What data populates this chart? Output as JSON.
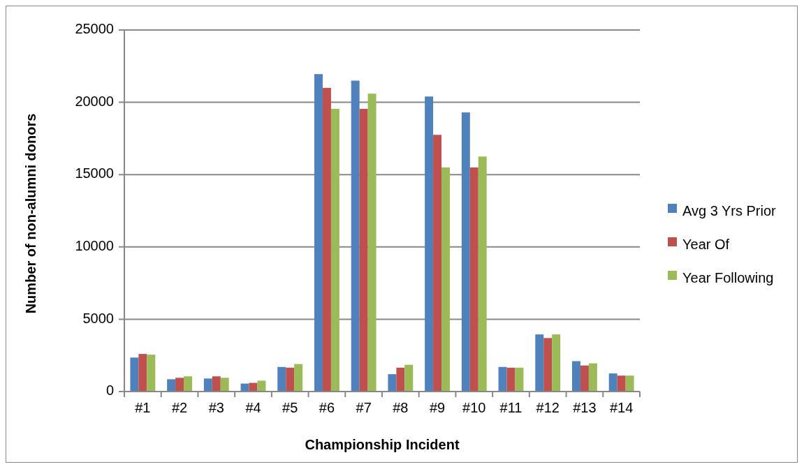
{
  "chart_data": {
    "type": "bar",
    "xlabel": "Championship Incident",
    "ylabel": "Number of non-alumni donors",
    "categories": [
      "#1",
      "#2",
      "#3",
      "#4",
      "#5",
      "#6",
      "#7",
      "#8",
      "#9",
      "#10",
      "#11",
      "#12",
      "#13",
      "#14"
    ],
    "series": [
      {
        "name": "Avg 3 Yrs Prior",
        "color": "#4f81bd",
        "values": [
          2350,
          850,
          900,
          550,
          1700,
          21950,
          21500,
          1200,
          20400,
          19300,
          1700,
          3950,
          2100,
          1250
        ]
      },
      {
        "name": "Year Of",
        "color": "#c0504d",
        "values": [
          2600,
          950,
          1050,
          600,
          1650,
          21000,
          19550,
          1650,
          17750,
          15500,
          1650,
          3700,
          1800,
          1100
        ]
      },
      {
        "name": "Year Following",
        "color": "#9bbb59",
        "values": [
          2550,
          1050,
          950,
          750,
          1900,
          19550,
          20600,
          1850,
          15500,
          16250,
          1650,
          3950,
          1950,
          1100
        ]
      }
    ],
    "ylim": [
      0,
      25000
    ],
    "yticks": [
      0,
      5000,
      10000,
      15000,
      20000,
      25000
    ],
    "grid": "y",
    "legend": "right"
  }
}
